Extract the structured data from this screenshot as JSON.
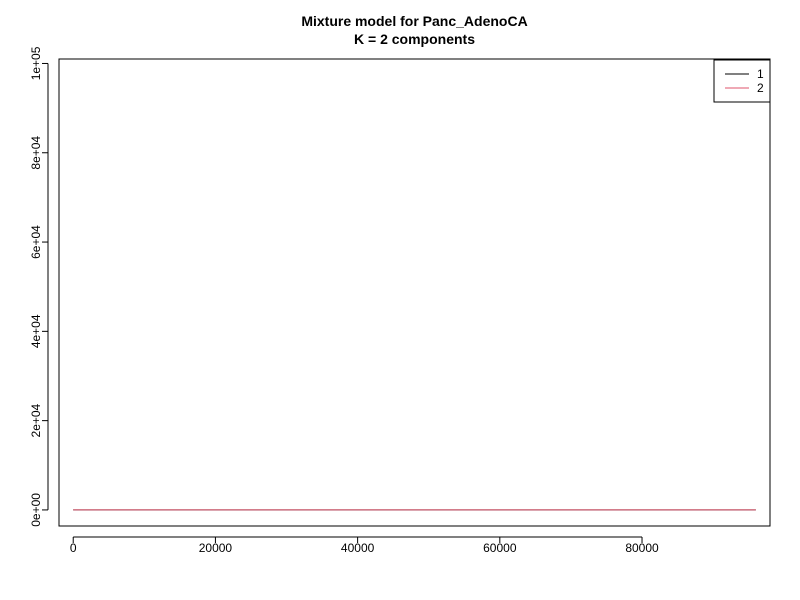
{
  "chart_data": {
    "type": "line",
    "title": "Mixture model for Panc_AdenoCA",
    "subtitle": "K = 2 components",
    "xlabel": "",
    "ylabel": "",
    "xlim": [
      -2000,
      98000
    ],
    "ylim": [
      -3600,
      101000
    ],
    "x_ticks": [
      {
        "value": 0,
        "label": "0"
      },
      {
        "value": 20000,
        "label": "20000"
      },
      {
        "value": 40000,
        "label": "40000"
      },
      {
        "value": 60000,
        "label": "60000"
      },
      {
        "value": 80000,
        "label": "80000"
      }
    ],
    "y_ticks": [
      {
        "value": 0,
        "label": "0e+00"
      },
      {
        "value": 20000,
        "label": "2e+04"
      },
      {
        "value": 40000,
        "label": "4e+04"
      },
      {
        "value": 60000,
        "label": "6e+04"
      },
      {
        "value": 80000,
        "label": "8e+04"
      },
      {
        "value": 100000,
        "label": "1e+05"
      }
    ],
    "series": [
      {
        "name": "1",
        "color": "#000000",
        "x": [
          0,
          96000
        ],
        "y": [
          0,
          0
        ]
      },
      {
        "name": "2",
        "color": "#df536b",
        "x": [
          0,
          96000
        ],
        "y": [
          0,
          0
        ]
      }
    ],
    "legend_position": "top-right",
    "grid": false
  }
}
